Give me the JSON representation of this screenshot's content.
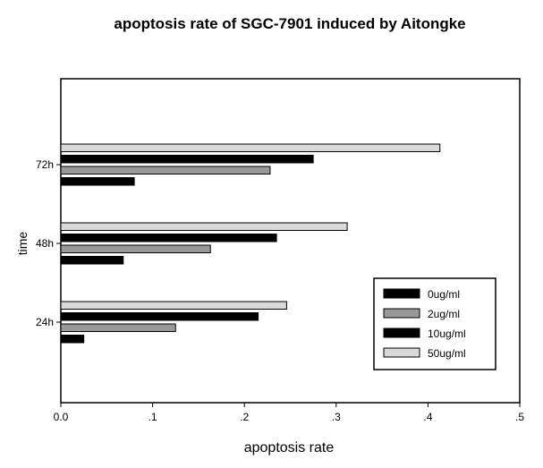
{
  "chart_data": {
    "type": "bar",
    "orientation": "horizontal",
    "title": "apoptosis rate of SGC-7901 induced by Aitongke",
    "xlabel": "apoptosis rate",
    "ylabel": "time",
    "categories": [
      "24h",
      "48h",
      "72h"
    ],
    "xlim": [
      0,
      0.5
    ],
    "x_ticks": [
      "0.0",
      ".1",
      ".2",
      ".3",
      ".4",
      ".5"
    ],
    "grid": false,
    "legend_position": "bottom-right",
    "series": [
      {
        "name": "0ug/ml",
        "color": "#000000",
        "values": [
          0.025,
          0.068,
          0.08
        ]
      },
      {
        "name": "2ug/ml",
        "color": "#999999",
        "values": [
          0.125,
          0.163,
          0.228
        ]
      },
      {
        "name": "10ug/ml",
        "color": "#000000",
        "values": [
          0.215,
          0.235,
          0.275
        ]
      },
      {
        "name": "50ug/ml",
        "color": "#d9d9d9",
        "values": [
          0.246,
          0.312,
          0.413
        ]
      }
    ]
  }
}
